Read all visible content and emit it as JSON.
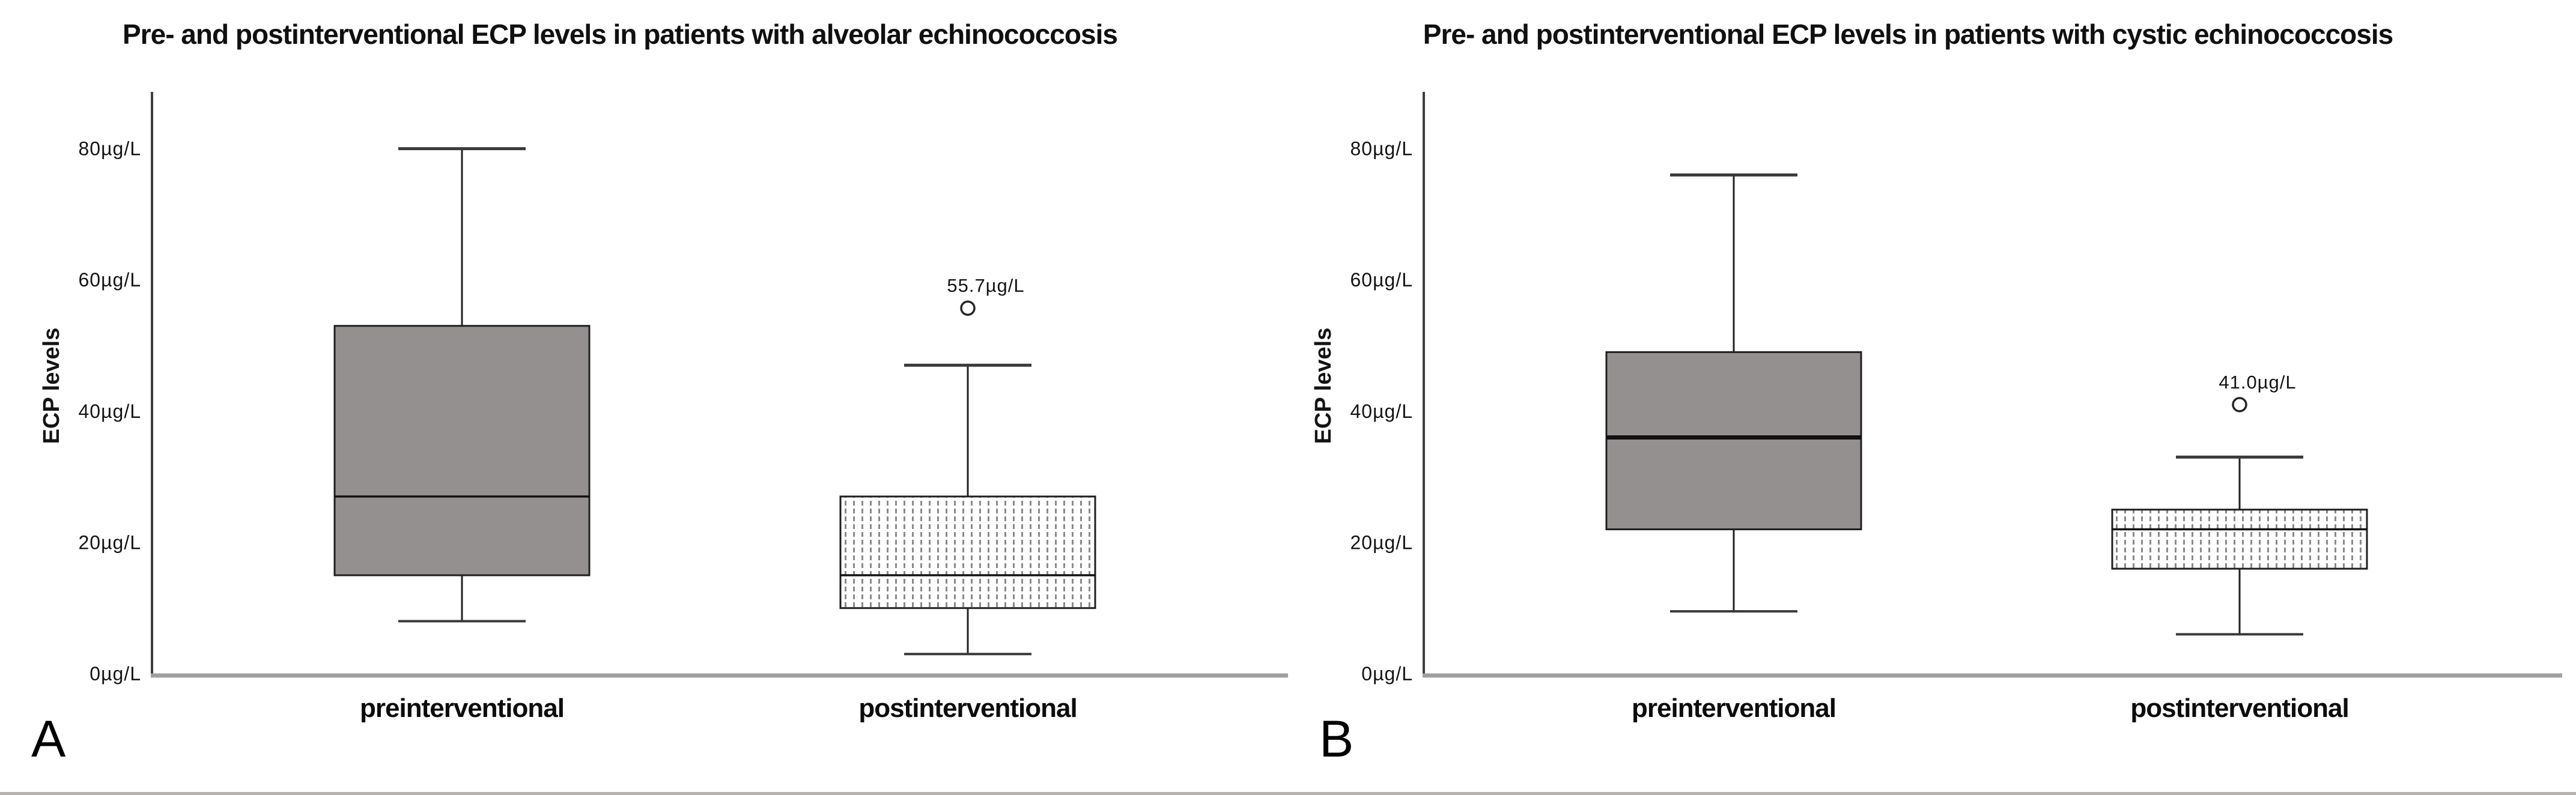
{
  "colors": {
    "box_fill_solid": "#949090",
    "box_stroke": "#1f1f1f",
    "whisker": "#222222",
    "cap": "#3a3a3a",
    "y_axis": "#3f3f3f",
    "x_axis": "#9f9f9f",
    "stipple_dash": "#8a8a8a",
    "text": "#141414",
    "outlier_stroke": "#262626",
    "bottom_rule": "#b5b2b2"
  },
  "chart_data": [
    {
      "type": "box",
      "panel_letter": "A",
      "title": "Pre- and postinterventional ECP levels in patients with alveolar echinococcosis",
      "ylabel": "ECP levels",
      "unit": "µg/L",
      "ylim": [
        0,
        88
      ],
      "grid": false,
      "yticks": [
        {
          "value": 0,
          "label": "0µg/L"
        },
        {
          "value": 20,
          "label": "20µg/L"
        },
        {
          "value": 40,
          "label": "40µg/L"
        },
        {
          "value": 60,
          "label": "60µg/L"
        },
        {
          "value": 80,
          "label": "80µg/L"
        }
      ],
      "categories": [
        "preinterventional",
        "postinterventional"
      ],
      "boxes": [
        {
          "category": "preinterventional",
          "fill": "solid",
          "whisker_low": 8,
          "q1": 15,
          "median": 27,
          "q3": 53,
          "whisker_high": 80,
          "median_emphasis": "normal"
        },
        {
          "category": "postinterventional",
          "fill": "stippled",
          "whisker_low": 3,
          "q1": 10,
          "median": 15,
          "q3": 27,
          "whisker_high": 47,
          "median_emphasis": "normal",
          "outlier": {
            "value": 55.7,
            "label": "55.7µg/L"
          }
        }
      ]
    },
    {
      "type": "box",
      "panel_letter": "B",
      "title": "Pre- and postinterventional ECP levels in patients with cystic echinococcosis",
      "ylabel": "ECP levels",
      "unit": "µg/L",
      "ylim": [
        0,
        88
      ],
      "grid": false,
      "yticks": [
        {
          "value": 0,
          "label": "0µg/L"
        },
        {
          "value": 20,
          "label": "20µg/L"
        },
        {
          "value": 40,
          "label": "40µg/L"
        },
        {
          "value": 60,
          "label": "60µg/L"
        },
        {
          "value": 80,
          "label": "80µg/L"
        }
      ],
      "categories": [
        "preinterventional",
        "postinterventional"
      ],
      "boxes": [
        {
          "category": "preinterventional",
          "fill": "solid",
          "whisker_low": 9.5,
          "q1": 22,
          "median": 36,
          "q3": 49,
          "whisker_high": 76,
          "median_emphasis": "thick"
        },
        {
          "category": "postinterventional",
          "fill": "stippled",
          "whisker_low": 6,
          "q1": 16,
          "median": 22,
          "q3": 25,
          "whisker_high": 33,
          "median_emphasis": "normal",
          "outlier": {
            "value": 41.0,
            "label": "41.0µg/L"
          }
        }
      ]
    }
  ]
}
